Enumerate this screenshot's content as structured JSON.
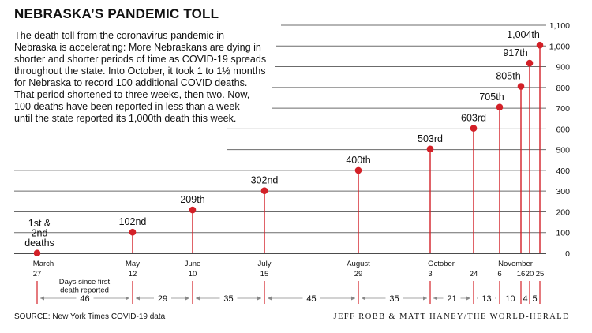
{
  "title": "NEBRASKA’S PANDEMIC TOLL",
  "intro": "The death toll from the coronavirus pandemic in Nebraska is accelerating: More Nebraskans are dying in shorter and shorter periods of time as COVID-19 spreads throughout the state. Into October, it took 1 to 1½ months for Nebraska to record 100 additional COVID deaths. That period shortened to three weeks, then two. Now, 100 deaths have been reported in less than a week — until the state reported its 1,000th death this week.",
  "source": "SOURCE: New York Times COVID-19 data",
  "credit": "JEFF ROBB & MATT HANEY/THE WORLD-HERALD",
  "colors": {
    "marker": "#d32027",
    "grid": "#6b6b6b",
    "text": "#111111"
  },
  "chart_data": {
    "type": "scatter",
    "title": "NEBRASKA’S PANDEMIC TOLL",
    "ylim": [
      0,
      1100
    ],
    "yticks": [
      0,
      100,
      200,
      300,
      400,
      500,
      600,
      700,
      800,
      900,
      1000,
      1100
    ],
    "ytick_labels": [
      "0",
      "100",
      "200",
      "300",
      "400",
      "500",
      "600",
      "700",
      "800",
      "900",
      "1,000",
      "1,100"
    ],
    "grid": true,
    "points": [
      {
        "month": "March",
        "day": "27",
        "value": 1,
        "label": "1st & 2nd deaths"
      },
      {
        "month": "May",
        "day": "12",
        "value": 102,
        "label": "102nd"
      },
      {
        "month": "June",
        "day": "10",
        "value": 209,
        "label": "209th"
      },
      {
        "month": "July",
        "day": "15",
        "value": 302,
        "label": "302nd"
      },
      {
        "month": "August",
        "day": "29",
        "value": 400,
        "label": "400th"
      },
      {
        "month": "October",
        "day": "3",
        "value": 503,
        "label": "503rd"
      },
      {
        "month": "",
        "day": "24",
        "value": 603,
        "label": "603rd"
      },
      {
        "month": "November",
        "day": "6",
        "value": 705,
        "label": "705th"
      },
      {
        "month": "",
        "day": "16",
        "value": 805,
        "label": "805th"
      },
      {
        "month": "",
        "day": "20",
        "value": 917,
        "label": "917th"
      },
      {
        "month": "",
        "day": "25",
        "value": 1004,
        "label": "1,004th"
      }
    ],
    "intervals": {
      "caption": "Days since first death reported",
      "values": [
        "46",
        "29",
        "35",
        "45",
        "35",
        "21",
        "13",
        "10",
        "4",
        "5"
      ]
    }
  }
}
